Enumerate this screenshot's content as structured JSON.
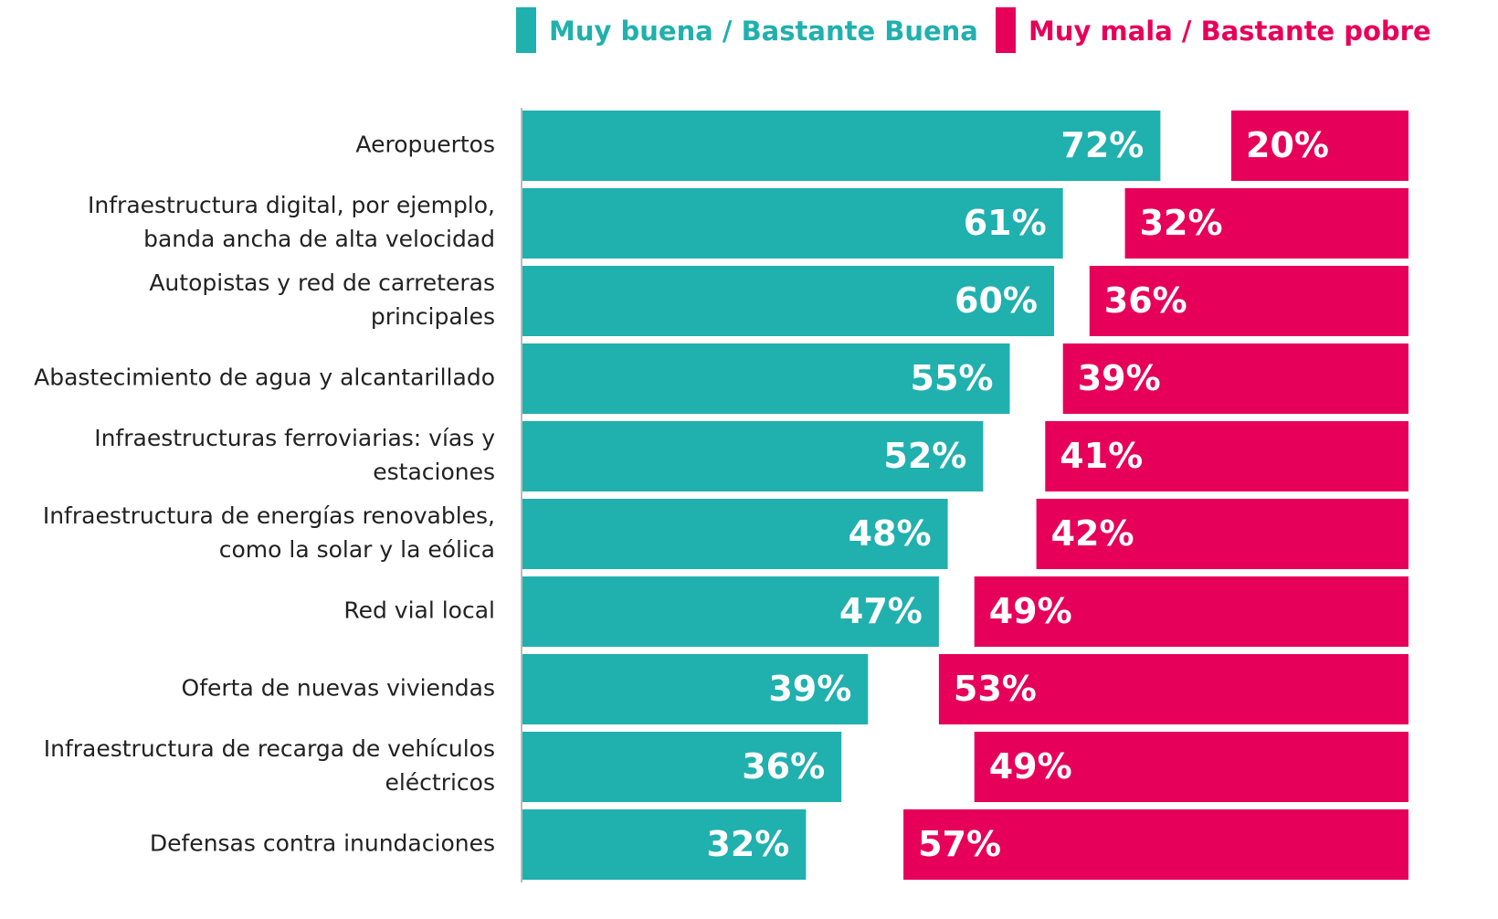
{
  "chart_data": {
    "type": "bar",
    "mode": "diverging",
    "categories": [
      "Aeropuertos",
      "Infraestructura digital, por ejemplo,\nbanda ancha de alta velocidad",
      "Autopistas y red de carreteras\nprincipales",
      "Abastecimiento de agua y alcantarillado",
      "Infraestructuras ferroviarias: vías y\nestaciones",
      "Infraestructura de energías renovables,\ncomo la solar y la eólica",
      "Red vial local",
      "Oferta de nuevas viviendas",
      "Infraestructura de recarga de vehículos\neléctricos",
      "Defensas contra inundaciones"
    ],
    "series": [
      {
        "name": "Muy buena / Bastante Buena",
        "color": "#20b0ae",
        "values": [
          72,
          61,
          60,
          55,
          52,
          48,
          47,
          39,
          36,
          32
        ],
        "value_labels": [
          "72%",
          "61%",
          "60%",
          "55%",
          "52%",
          "48%",
          "47%",
          "39%",
          "36%",
          "32%"
        ]
      },
      {
        "name": "Muy mala / Bastante pobre",
        "color": "#e6005a",
        "values": [
          20,
          32,
          36,
          39,
          41,
          42,
          49,
          53,
          49,
          57
        ],
        "value_labels": [
          "20%",
          "32%",
          "36%",
          "39%",
          "41%",
          "42%",
          "49%",
          "53%",
          "49%",
          "57%"
        ]
      }
    ]
  }
}
